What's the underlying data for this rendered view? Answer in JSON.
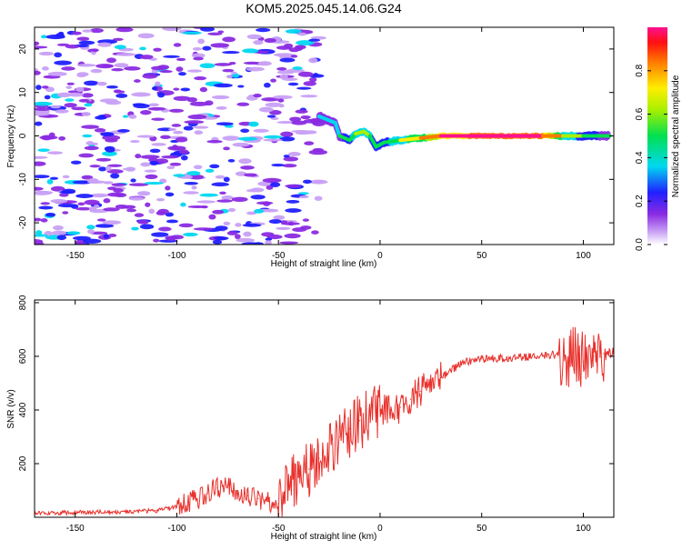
{
  "figure": {
    "title": "KOM5.2025.045.14.06.G24"
  },
  "chart_data": [
    {
      "type": "heatmap",
      "xlabel": "Height of straight line (km)",
      "ylabel": "Frequency (Hz)",
      "xlim": [
        -170,
        115
      ],
      "ylim": [
        -25,
        25
      ],
      "xticks": [
        -150,
        -100,
        -50,
        0,
        50,
        100
      ],
      "yticks": [
        -20,
        -10,
        0,
        10,
        20
      ],
      "colorbar": {
        "label": "Normalized spectral amplitude",
        "range": [
          0,
          1
        ],
        "ticks": [
          0.0,
          0.2,
          0.4,
          0.6,
          0.8
        ]
      },
      "noise_region": {
        "x": [
          -170,
          -30
        ],
        "y": [
          -25,
          25
        ],
        "amplitude": [
          0.05,
          0.3
        ]
      },
      "signal_track": [
        {
          "x": -30,
          "y": 4.5,
          "amplitude": 0.25
        },
        {
          "x": -22,
          "y": 3.0,
          "amplitude": 0.3
        },
        {
          "x": -20,
          "y": 0.0,
          "amplitude": 0.35
        },
        {
          "x": -15,
          "y": -1.0,
          "amplitude": 0.45
        },
        {
          "x": -12,
          "y": 0.5,
          "amplitude": 0.55
        },
        {
          "x": -8,
          "y": 1.0,
          "amplitude": 0.6
        },
        {
          "x": -5,
          "y": 0.0,
          "amplitude": 0.5
        },
        {
          "x": -2,
          "y": -2.5,
          "amplitude": 0.4
        },
        {
          "x": 2,
          "y": -1.5,
          "amplitude": 0.45
        },
        {
          "x": 10,
          "y": -1.0,
          "amplitude": 0.55
        },
        {
          "x": 20,
          "y": -0.5,
          "amplitude": 0.7
        },
        {
          "x": 30,
          "y": 0.0,
          "amplitude": 0.9
        },
        {
          "x": 50,
          "y": 0.0,
          "amplitude": 1.0
        },
        {
          "x": 80,
          "y": 0.0,
          "amplitude": 1.0
        },
        {
          "x": 90,
          "y": 0.0,
          "amplitude": 0.6
        },
        {
          "x": 100,
          "y": 0.0,
          "amplitude": 0.45
        },
        {
          "x": 113,
          "y": 0.0,
          "amplitude": 0.35
        }
      ]
    },
    {
      "type": "line",
      "xlabel": "Height of straight line (km)",
      "ylabel": "SNR (v/v)",
      "xlim": [
        -170,
        115
      ],
      "ylim": [
        0,
        810
      ],
      "xticks": [
        -150,
        -100,
        -50,
        0,
        50,
        100
      ],
      "yticks": [
        200,
        400,
        600,
        800
      ],
      "series": [
        {
          "color": "#e8302b",
          "x": [
            -170,
            -150,
            -130,
            -110,
            -100,
            -90,
            -85,
            -80,
            -75,
            -70,
            -65,
            -60,
            -55,
            -50,
            -45,
            -40,
            -35,
            -30,
            -25,
            -20,
            -15,
            -10,
            -5,
            0,
            5,
            10,
            15,
            20,
            25,
            30,
            40,
            50,
            60,
            70,
            80,
            88,
            92,
            95,
            100,
            105,
            110,
            115
          ],
          "y": [
            15,
            18,
            20,
            25,
            40,
            70,
            90,
            110,
            120,
            100,
            80,
            70,
            60,
            50,
            120,
            150,
            180,
            220,
            260,
            300,
            330,
            360,
            380,
            400,
            400,
            410,
            440,
            470,
            500,
            520,
            575,
            590,
            592,
            597,
            600,
            610,
            560,
            620,
            580,
            600,
            610,
            610
          ]
        }
      ]
    }
  ]
}
